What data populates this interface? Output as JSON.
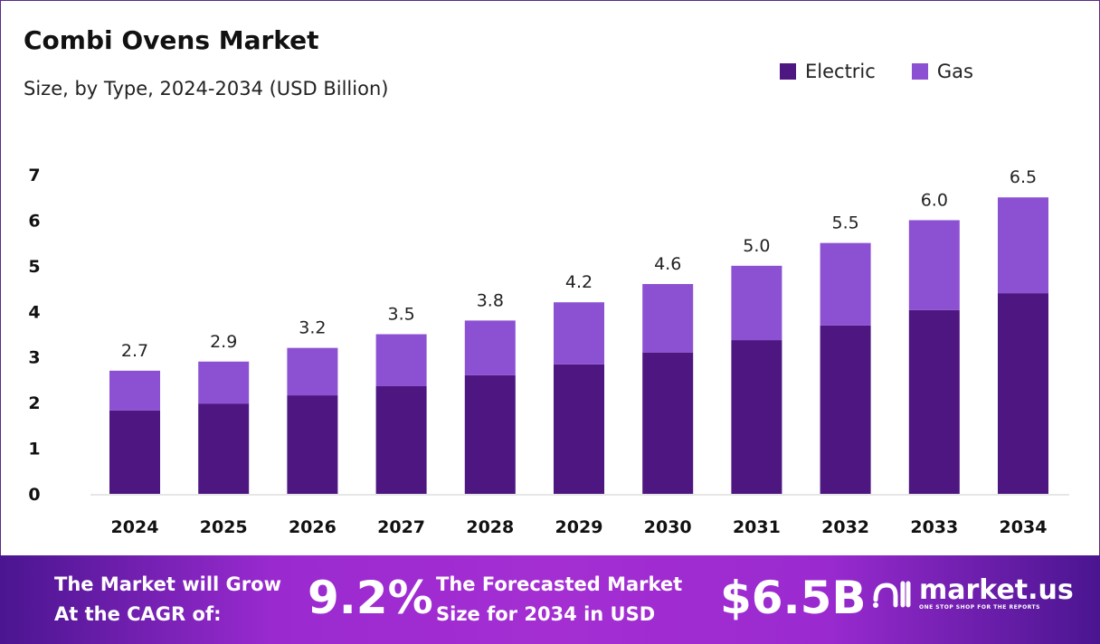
{
  "colors": {
    "electric": "#4d1681",
    "gas": "#8c51d2"
  },
  "chart_data": {
    "type": "bar",
    "stacked": true,
    "title": "Combi Ovens Market",
    "subtitle": "Size, by Type, 2024-2034 (USD Billion)",
    "categories": [
      "2024",
      "2025",
      "2026",
      "2027",
      "2028",
      "2029",
      "2030",
      "2031",
      "2032",
      "2033",
      "2034"
    ],
    "series": [
      {
        "name": "Electric",
        "values": [
          1.83,
          1.98,
          2.16,
          2.36,
          2.6,
          2.84,
          3.1,
          3.37,
          3.69,
          4.03,
          4.4
        ]
      },
      {
        "name": "Gas",
        "values": [
          0.87,
          0.92,
          1.04,
          1.14,
          1.2,
          1.36,
          1.5,
          1.63,
          1.81,
          1.97,
          2.1
        ]
      }
    ],
    "totals": [
      "2.7",
      "2.9",
      "3.2",
      "3.5",
      "3.8",
      "4.2",
      "4.6",
      "5.0",
      "5.5",
      "6.0",
      "6.5"
    ],
    "yticks": [
      "0",
      "1",
      "2",
      "3",
      "4",
      "5",
      "6",
      "7"
    ],
    "ylim": [
      0,
      7
    ],
    "legend": "top-right"
  },
  "footer": {
    "cagr_line1": "The Market will Grow",
    "cagr_line2": "At the CAGR of:",
    "cagr_value": "9.2%",
    "forecast_line1": "The Forecasted Market",
    "forecast_line2": "Size for 2034 in USD",
    "forecast_value": "$6.5B",
    "logo_name": "market.us",
    "logo_tagline": "ONE STOP SHOP FOR THE REPORTS"
  }
}
